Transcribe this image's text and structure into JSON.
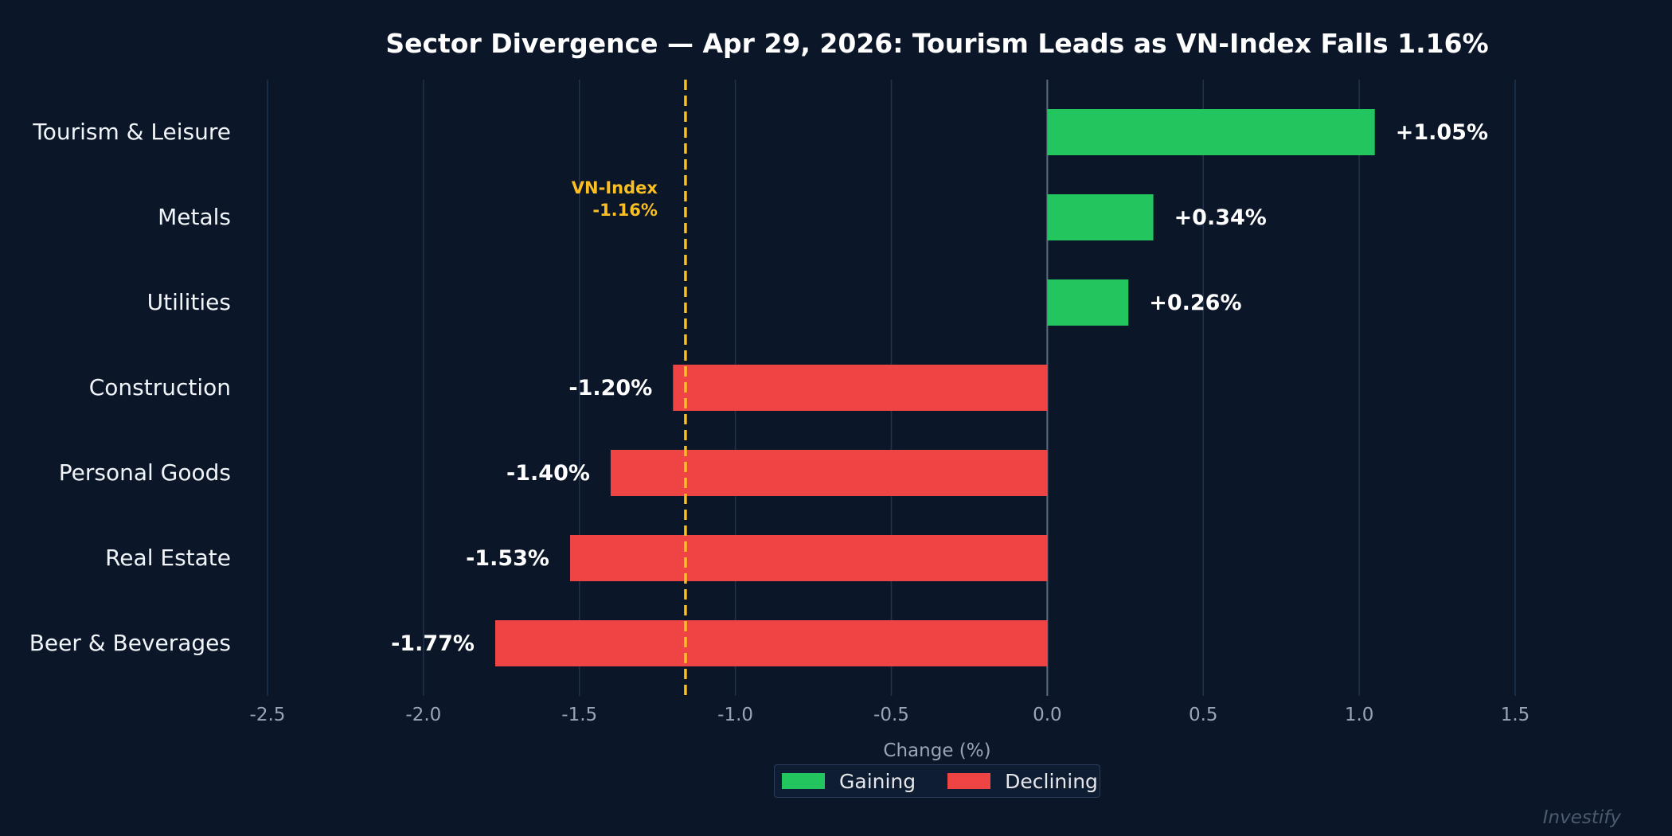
{
  "chart_data": {
    "type": "bar",
    "orientation": "horizontal",
    "title": "Sector Divergence — Apr 29, 2026: Tourism Leads as VN-Index Falls 1.16%",
    "xlabel": "Change (%)",
    "ylabel": "",
    "xlim": [
      -2.5,
      1.5
    ],
    "xticks": [
      -2.5,
      -2.0,
      -1.5,
      -1.0,
      -0.5,
      0.0,
      0.5,
      1.0,
      1.5
    ],
    "xtick_labels": [
      "-2.5",
      "-2.0",
      "-1.5",
      "-1.0",
      "-0.5",
      "0.0",
      "0.5",
      "1.0",
      "1.5"
    ],
    "grid": "vertical",
    "categories": [
      "Tourism & Leisure",
      "Metals",
      "Utilities",
      "Construction",
      "Personal Goods",
      "Real Estate",
      "Beer & Beverages"
    ],
    "values": [
      1.05,
      0.34,
      0.26,
      -1.2,
      -1.4,
      -1.53,
      -1.77
    ],
    "value_labels": [
      "+1.05%",
      "+0.34%",
      "+0.26%",
      "-1.20%",
      "-1.40%",
      "-1.53%",
      "-1.77%"
    ],
    "reference_line": {
      "value": -1.16,
      "label": "VN-Index",
      "value_label": "-1.16%",
      "color": "#fbbf24",
      "style": "dashed"
    },
    "legend": {
      "placement": "bottom-center",
      "entries": [
        {
          "name": "Gaining",
          "color": "#22c55e"
        },
        {
          "name": "Declining",
          "color": "#ef4444"
        }
      ]
    },
    "colors": {
      "positive": "#22c55e",
      "negative": "#ef4444",
      "background": "#0b1628",
      "grid": "#1e3350",
      "zero_line": "#5b6b80"
    }
  },
  "watermark": "Investify"
}
